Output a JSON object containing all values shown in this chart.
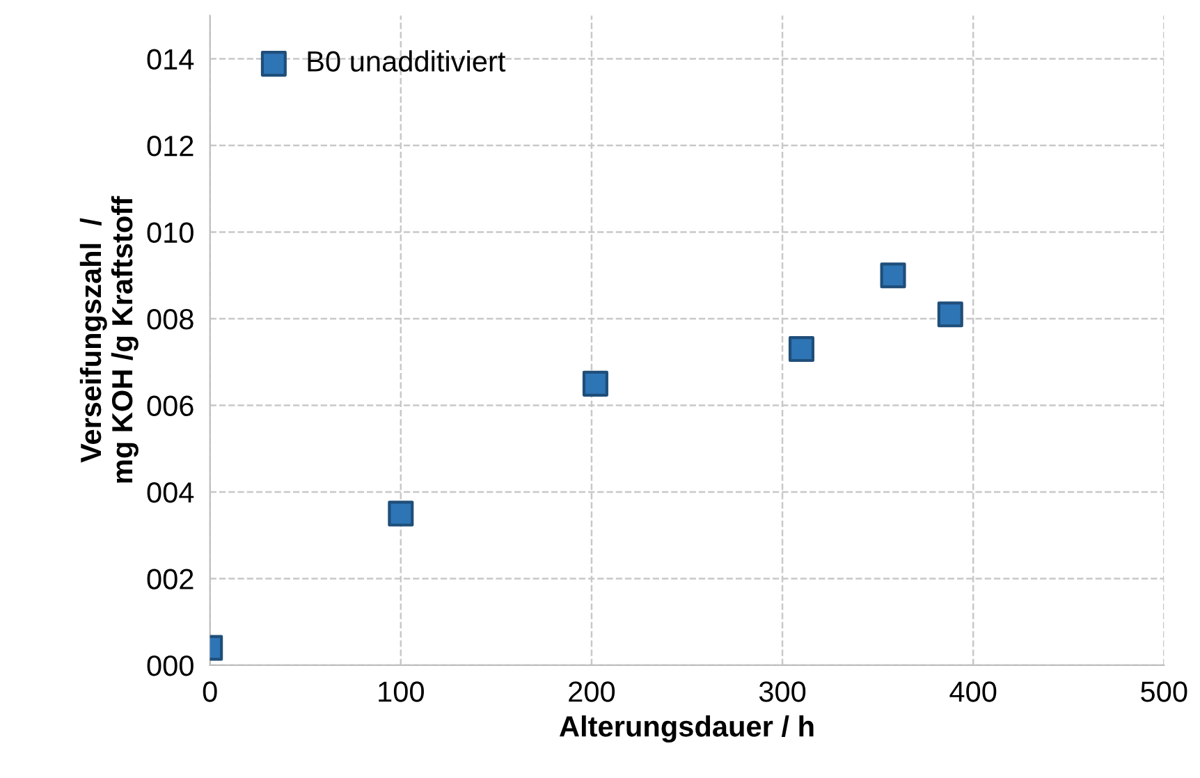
{
  "chart_data": {
    "type": "scatter",
    "xlabel": "Alterungsdauer / h",
    "ylabel": "Verseifungszahl  /\nmg KOH /g Kraftstoff",
    "x": [
      0,
      100,
      202,
      310,
      358,
      388
    ],
    "series": [
      {
        "name": "B0 unadditiviert",
        "color": "#2e75b6",
        "values": [
          0.4,
          3.5,
          6.5,
          7.3,
          9.0,
          8.1
        ]
      }
    ],
    "xlim": [
      0,
      500
    ],
    "xticks": [
      0,
      100,
      200,
      300,
      400,
      500
    ],
    "ylim": [
      0,
      15
    ],
    "yticks": [
      {
        "value": 0,
        "label": "000"
      },
      {
        "value": 2,
        "label": "002"
      },
      {
        "value": 4,
        "label": "004"
      },
      {
        "value": 6,
        "label": "006"
      },
      {
        "value": 8,
        "label": "008"
      },
      {
        "value": 10,
        "label": "010"
      },
      {
        "value": 12,
        "label": "012"
      },
      {
        "value": 14,
        "label": "014"
      }
    ],
    "grid": true,
    "legend": "top left",
    "marker": "square"
  }
}
